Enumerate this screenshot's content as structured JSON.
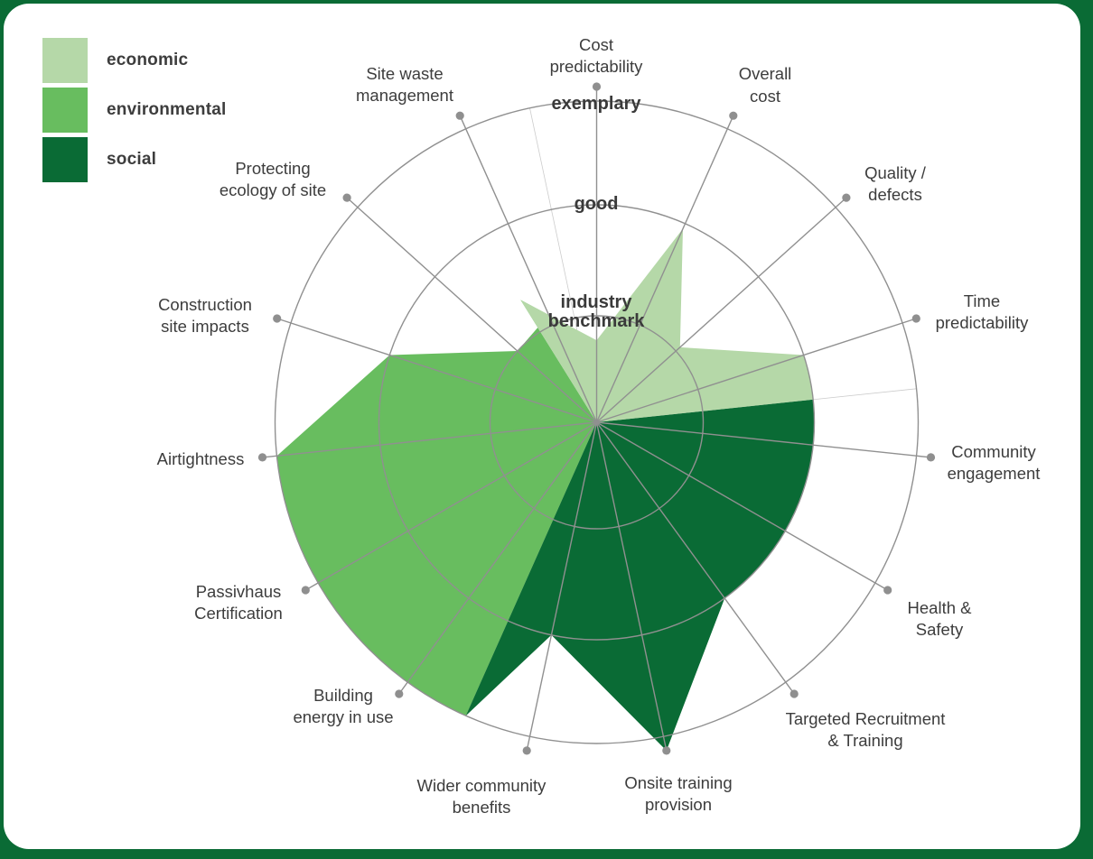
{
  "legend": {
    "items": [
      {
        "label": "economic",
        "color": "#b5d8a8"
      },
      {
        "label": "environmental",
        "color": "#68bd5f"
      },
      {
        "label": "social",
        "color": "#0a6b35"
      }
    ]
  },
  "frame_color": "#0a6b35",
  "chart_data": {
    "type": "radar",
    "title": "",
    "scale": {
      "min": 0,
      "max": 3.15,
      "rings": [
        1,
        2,
        3
      ]
    },
    "ring_labels": [
      {
        "label": "industry benchmark",
        "lines": [
          "industry",
          "benchmark"
        ],
        "value": 1
      },
      {
        "label": "good",
        "lines": [
          "good"
        ],
        "value": 2
      },
      {
        "label": "exemplary",
        "lines": [
          "exemplary"
        ],
        "value": 3
      }
    ],
    "legend_position": "top-left",
    "grid": true,
    "colors": {
      "economic": "#b5d8a8",
      "environmental": "#68bd5f",
      "social": "#0a6b35",
      "grid": "#909090",
      "dot": "#8f8f8f",
      "divider": "#cccccc",
      "text": "#3d3d3d"
    },
    "spokes": [
      {
        "label": "Cost predictability",
        "lines": [
          "Cost",
          "predictability"
        ],
        "category": "economic",
        "value": 0.77
      },
      {
        "label": "Overall cost",
        "lines": [
          "Overall",
          "cost"
        ],
        "category": "economic",
        "value": 1.95
      },
      {
        "label": "Quality / defects",
        "lines": [
          "Quality /",
          "defects"
        ],
        "category": "economic",
        "value": 1.05
      },
      {
        "label": "Time predictability",
        "lines": [
          "Time",
          "predictability"
        ],
        "category": "economic",
        "value": 2
      },
      {
        "label": "Community engagement",
        "lines": [
          "Community",
          "engagement"
        ],
        "category": "social",
        "value": 2
      },
      {
        "label": "Health & Safety",
        "lines": [
          "Health &",
          "Safety"
        ],
        "category": "social",
        "value": 2
      },
      {
        "label": "Targeted Recruitment & Training",
        "lines": [
          "Targeted Recruitment",
          "& Training"
        ],
        "category": "social",
        "value": 2
      },
      {
        "label": "Onsite training provision",
        "lines": [
          "Onsite training",
          "provision"
        ],
        "category": "social",
        "value": 3.15
      },
      {
        "label": "Wider community benefits",
        "lines": [
          "Wider community",
          "benefits"
        ],
        "category": "social",
        "value": 2
      },
      {
        "label": "Building energy in use",
        "lines": [
          "Building",
          "energy in use"
        ],
        "category": "environmental",
        "value": 3
      },
      {
        "label": "Passivhaus Certification",
        "lines": [
          "Passivhaus",
          "Certification"
        ],
        "category": "environmental",
        "value": 3
      },
      {
        "label": "Airtightness",
        "lines": [
          "Airtightness"
        ],
        "category": "environmental",
        "value": 3
      },
      {
        "label": "Construction site impacts",
        "lines": [
          "Construction",
          "site impacts"
        ],
        "category": "environmental",
        "value": 2
      },
      {
        "label": "Protecting ecology of site",
        "lines": [
          "Protecting",
          "ecology of site"
        ],
        "category": "environmental",
        "value": 1
      },
      {
        "label": "Site waste management",
        "lines": [
          "Site waste",
          "management"
        ],
        "category": "environmental",
        "value": 1.1
      }
    ]
  }
}
